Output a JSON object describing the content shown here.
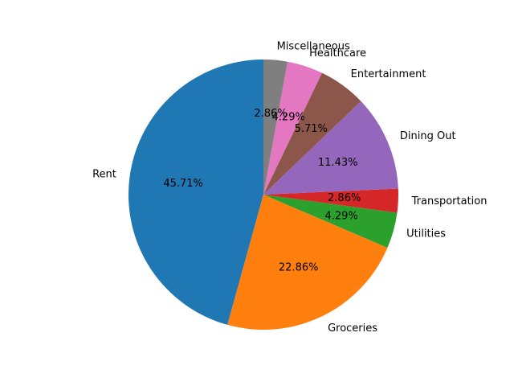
{
  "chart_data": {
    "type": "pie",
    "title": "",
    "start_angle_deg": 90,
    "direction": "counterclockwise",
    "slices": [
      {
        "label": "Rent",
        "value": 45.71,
        "pct_label": "45.71%",
        "color": "#1f77b4"
      },
      {
        "label": "Groceries",
        "value": 22.86,
        "pct_label": "22.86%",
        "color": "#ff7f0e"
      },
      {
        "label": "Utilities",
        "value": 4.29,
        "pct_label": "4.29%",
        "color": "#2ca02c"
      },
      {
        "label": "Transportation",
        "value": 2.86,
        "pct_label": "2.86%",
        "color": "#d62728"
      },
      {
        "label": "Dining Out",
        "value": 11.43,
        "pct_label": "11.43%",
        "color": "#9467bd"
      },
      {
        "label": "Entertainment",
        "value": 5.71,
        "pct_label": "5.71%",
        "color": "#8c564b"
      },
      {
        "label": "Healthcare",
        "value": 4.29,
        "pct_label": "4.29%",
        "color": "#e377c2"
      },
      {
        "label": "Miscellaneous",
        "value": 2.86,
        "pct_label": "2.86%",
        "color": "#7f7f7f"
      }
    ]
  }
}
